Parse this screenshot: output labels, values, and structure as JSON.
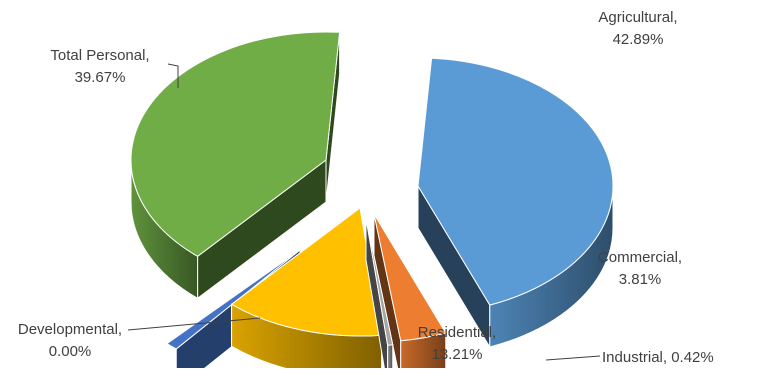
{
  "chart_data": {
    "type": "pie",
    "variant": "3d-exploded",
    "title": "",
    "legend": "none",
    "slices": [
      {
        "name": "Agricultural",
        "label": "Agricultural,",
        "value_label": "42.89%",
        "value": 42.89,
        "color": "#5B9BD5"
      },
      {
        "name": "Commercial",
        "label": "Commercial,",
        "value_label": "3.81%",
        "value": 3.81,
        "color": "#ED7D31"
      },
      {
        "name": "Industrial",
        "label": "Industrial, 0.42%",
        "value_label": "",
        "value": 0.42,
        "color": "#A5A5A5"
      },
      {
        "name": "Residential",
        "label": "Residential,",
        "value_label": "13.21%",
        "value": 13.21,
        "color": "#FFC000"
      },
      {
        "name": "Developmental",
        "label": "Developmental,",
        "value_label": "0.00%",
        "value": 0.0,
        "color": "#4472C4"
      },
      {
        "name": "Total Personal",
        "label": "Total Personal,",
        "value_label": "39.67%",
        "value": 39.67,
        "color": "#70AD47"
      }
    ],
    "label_color": "#404040",
    "leader_line_color": "#404040"
  }
}
